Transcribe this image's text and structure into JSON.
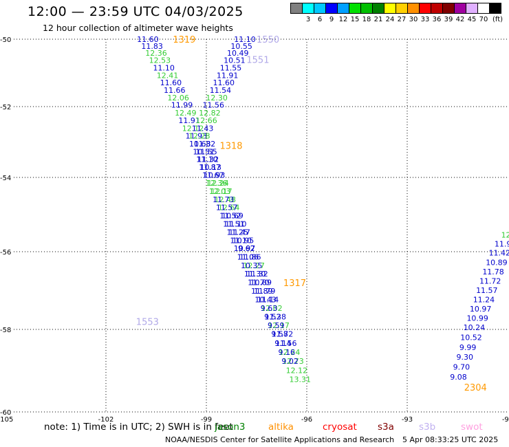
{
  "header": {
    "title": "12:00 — 23:59 UTC 04/03/2025",
    "subtitle": "12 hour collection of altimeter wave heights"
  },
  "legend": {
    "unit": "(ft)",
    "bins": [
      {
        "label": "",
        "color": "#808080"
      },
      {
        "label": "3",
        "color": "#00ffff"
      },
      {
        "label": "6",
        "color": "#00c8ff"
      },
      {
        "label": "9",
        "color": "#0000ff"
      },
      {
        "label": "12",
        "color": "#00a0ff"
      },
      {
        "label": "15",
        "color": "#00e000"
      },
      {
        "label": "18",
        "color": "#00c000"
      },
      {
        "label": "21",
        "color": "#008000"
      },
      {
        "label": "24",
        "color": "#ffff00"
      },
      {
        "label": "27",
        "color": "#ffd000"
      },
      {
        "label": "30",
        "color": "#ff9000"
      },
      {
        "label": "33",
        "color": "#ff0000"
      },
      {
        "label": "36",
        "color": "#c00000"
      },
      {
        "label": "39",
        "color": "#800000"
      },
      {
        "label": "42",
        "color": "#a000a0"
      },
      {
        "label": "45",
        "color": "#e0b0ff"
      },
      {
        "label": "70",
        "color": "#ffffff"
      },
      {
        "label": "",
        "color": "#000000"
      }
    ]
  },
  "footer": {
    "note": "note:  1) Time is in UTC; 2) SWH is in feet",
    "satellites": [
      {
        "name": "jason3",
        "color": "#008000"
      },
      {
        "name": "altika",
        "color": "#ff9000"
      },
      {
        "name": "cryosat",
        "color": "#ff0000"
      },
      {
        "name": "s3a",
        "color": "#800000"
      },
      {
        "name": "s3b",
        "color": "#c0b0f0"
      },
      {
        "name": "swot",
        "color": "#ffa0e0"
      }
    ],
    "credit": "NOAA/NESDIS Center for Satellite Applications and Research",
    "timestamp": "5 Apr 08:33:25 UTC 2025"
  },
  "chart_data": {
    "type": "scatter",
    "title": "12:00 — 23:59 UTC 04/03/2025",
    "subtitle": "12 hour collection of altimeter wave heights",
    "xlim": [
      -105,
      -90
    ],
    "ylim": [
      -60,
      -50
    ],
    "x_ticks": [
      -105,
      -102,
      -99,
      -96,
      -93,
      -90
    ],
    "x_tick_labels": [
      "-105",
      "-102",
      "-99",
      "-96",
      "-93",
      "-90"
    ],
    "y_ticks": [
      -50,
      -52,
      -54,
      -56,
      -58,
      -60
    ],
    "y_tick_labels": [
      "-50",
      "-52",
      "-54",
      "-56",
      "-58",
      "-60"
    ],
    "grid": true,
    "colors": {
      "blue": "#0000cc",
      "green": "#33cc33",
      "orange": "#ff9900",
      "lavender": "#b0a8e8"
    },
    "pass_labels": [
      {
        "text": "1319",
        "x": -100.0,
        "y": -50.0,
        "color": "orange"
      },
      {
        "text": "1550",
        "x": -97.5,
        "y": -50.0,
        "color": "lavender"
      },
      {
        "text": "1551",
        "x": -97.8,
        "y": -50.6,
        "color": "lavender"
      },
      {
        "text": "1318",
        "x": -98.6,
        "y": -53.1,
        "color": "orange"
      },
      {
        "text": "1317",
        "x": -96.7,
        "y": -56.8,
        "color": "orange"
      },
      {
        "text": "1553",
        "x": -101.1,
        "y": -57.8,
        "color": "lavender"
      },
      {
        "text": "2304",
        "x": -91.3,
        "y": -59.4,
        "color": "orange"
      }
    ],
    "series": [
      {
        "points": [
          {
            "x": -100.75,
            "y": -50.0,
            "v": "11.60",
            "c": "blue"
          },
          {
            "x": -100.62,
            "y": -50.2,
            "v": "11.83",
            "c": "blue"
          },
          {
            "x": -100.5,
            "y": -50.41,
            "v": "12.36",
            "c": "green"
          },
          {
            "x": -100.39,
            "y": -50.62,
            "v": "12.53",
            "c": "green"
          },
          {
            "x": -100.27,
            "y": -50.85,
            "v": "11.10",
            "c": "blue"
          },
          {
            "x": -100.16,
            "y": -51.07,
            "v": "12.41",
            "c": "green"
          },
          {
            "x": -100.06,
            "y": -51.29,
            "v": "11.60",
            "c": "blue"
          },
          {
            "x": -99.95,
            "y": -51.51,
            "v": "11.66",
            "c": "blue"
          },
          {
            "x": -99.84,
            "y": -51.73,
            "v": "12.06",
            "c": "green"
          },
          {
            "x": -99.73,
            "y": -51.95,
            "v": "11.99",
            "c": "blue"
          },
          {
            "x": -99.62,
            "y": -52.17,
            "v": "12.49",
            "c": "green"
          },
          {
            "x": -99.51,
            "y": -52.39,
            "v": "11.91",
            "c": "blue"
          },
          {
            "x": -99.4,
            "y": -52.61,
            "v": "12.12",
            "c": "green"
          },
          {
            "x": -99.3,
            "y": -52.83,
            "v": "11.93",
            "c": "blue"
          },
          {
            "x": -99.19,
            "y": -53.05,
            "v": "10.68",
            "c": "blue"
          },
          {
            "x": -99.08,
            "y": -53.27,
            "v": "10.51",
            "c": "blue"
          },
          {
            "x": -98.98,
            "y": -53.49,
            "v": "11.10",
            "c": "blue"
          },
          {
            "x": -98.87,
            "y": -53.71,
            "v": "10.13",
            "c": "blue"
          },
          {
            "x": -98.76,
            "y": -53.93,
            "v": "10.93",
            "c": "blue"
          },
          {
            "x": -98.65,
            "y": -54.15,
            "v": "12.24",
            "c": "green"
          },
          {
            "x": -98.55,
            "y": -54.37,
            "v": "12.17",
            "c": "green"
          },
          {
            "x": -98.44,
            "y": -54.59,
            "v": "12.48",
            "c": "green"
          },
          {
            "x": -98.33,
            "y": -54.81,
            "v": "12.64",
            "c": "green"
          },
          {
            "x": -98.22,
            "y": -55.03,
            "v": "10.69",
            "c": "blue"
          },
          {
            "x": -98.12,
            "y": -55.25,
            "v": "11.10",
            "c": "blue"
          },
          {
            "x": -98.01,
            "y": -55.47,
            "v": "11.47",
            "c": "blue"
          },
          {
            "x": -97.9,
            "y": -55.69,
            "v": "10.95",
            "c": "blue"
          },
          {
            "x": -97.8,
            "y": -55.91,
            "v": "9.62",
            "c": "blue"
          },
          {
            "x": -97.69,
            "y": -56.13,
            "v": "11.86",
            "c": "blue"
          },
          {
            "x": -97.58,
            "y": -56.35,
            "v": "12.27",
            "c": "green"
          },
          {
            "x": -97.48,
            "y": -56.57,
            "v": "11.32",
            "c": "blue"
          },
          {
            "x": -97.37,
            "y": -56.79,
            "v": "10.89",
            "c": "blue"
          },
          {
            "x": -97.26,
            "y": -57.01,
            "v": "11.79",
            "c": "blue"
          },
          {
            "x": -97.16,
            "y": -57.23,
            "v": "11.14",
            "c": "blue"
          },
          {
            "x": -97.05,
            "y": -57.45,
            "v": "12.02",
            "c": "green"
          },
          {
            "x": -96.94,
            "y": -57.67,
            "v": "11.38",
            "c": "blue"
          },
          {
            "x": -96.84,
            "y": -57.89,
            "v": "12.17",
            "c": "green"
          },
          {
            "x": -96.73,
            "y": -58.11,
            "v": "11.72",
            "c": "blue"
          },
          {
            "x": -96.62,
            "y": -58.33,
            "v": "11.56",
            "c": "blue"
          },
          {
            "x": -96.52,
            "y": -58.55,
            "v": "12.24",
            "c": "green"
          },
          {
            "x": -96.41,
            "y": -58.77,
            "v": "12.73",
            "c": "green"
          },
          {
            "x": -96.3,
            "y": -58.99,
            "v": "12.12",
            "c": "green"
          },
          {
            "x": -96.2,
            "y": -59.21,
            "v": "13.31",
            "c": "green"
          }
        ]
      },
      {
        "points": [
          {
            "x": -97.85,
            "y": -50.0,
            "v": "11.10",
            "c": "blue"
          },
          {
            "x": -97.95,
            "y": -50.2,
            "v": "10.55",
            "c": "blue"
          },
          {
            "x": -98.06,
            "y": -50.41,
            "v": "10.49",
            "c": "blue"
          },
          {
            "x": -98.16,
            "y": -50.62,
            "v": "10.51",
            "c": "blue"
          },
          {
            "x": -98.27,
            "y": -50.85,
            "v": "11.55",
            "c": "blue"
          },
          {
            "x": -98.37,
            "y": -51.07,
            "v": "11.91",
            "c": "blue"
          },
          {
            "x": -98.48,
            "y": -51.29,
            "v": "11.60",
            "c": "blue"
          },
          {
            "x": -98.58,
            "y": -51.51,
            "v": "11.54",
            "c": "blue"
          },
          {
            "x": -98.69,
            "y": -51.73,
            "v": "12.30",
            "c": "green"
          },
          {
            "x": -98.79,
            "y": -51.95,
            "v": "11.56",
            "c": "blue"
          },
          {
            "x": -98.9,
            "y": -52.17,
            "v": "12.82",
            "c": "green"
          },
          {
            "x": -99.0,
            "y": -52.39,
            "v": "12.66",
            "c": "green"
          },
          {
            "x": -99.11,
            "y": -52.61,
            "v": "11.43",
            "c": "blue"
          },
          {
            "x": -99.21,
            "y": -52.83,
            "v": "12.28",
            "c": "green"
          },
          {
            "x": -99.05,
            "y": -53.05,
            "v": "11.32",
            "c": "blue"
          },
          {
            "x": -99.0,
            "y": -53.27,
            "v": "11.55",
            "c": "blue"
          },
          {
            "x": -98.95,
            "y": -53.49,
            "v": "11.32",
            "c": "blue"
          },
          {
            "x": -98.9,
            "y": -53.71,
            "v": "11.87",
            "c": "blue"
          },
          {
            "x": -98.8,
            "y": -53.93,
            "v": "11.67",
            "c": "blue"
          },
          {
            "x": -98.7,
            "y": -54.15,
            "v": "12.36",
            "c": "green"
          },
          {
            "x": -98.6,
            "y": -54.37,
            "v": "12.03",
            "c": "green"
          },
          {
            "x": -98.49,
            "y": -54.59,
            "v": "11.73",
            "c": "blue"
          },
          {
            "x": -98.39,
            "y": -54.81,
            "v": "11.57",
            "c": "blue"
          },
          {
            "x": -98.28,
            "y": -55.03,
            "v": "11.52",
            "c": "blue"
          },
          {
            "x": -98.18,
            "y": -55.25,
            "v": "11.51",
            "c": "blue"
          },
          {
            "x": -98.07,
            "y": -55.47,
            "v": "11.25",
            "c": "blue"
          },
          {
            "x": -97.97,
            "y": -55.69,
            "v": "11.10",
            "c": "blue"
          },
          {
            "x": -97.86,
            "y": -55.91,
            "v": "10.97",
            "c": "blue"
          },
          {
            "x": -97.76,
            "y": -56.13,
            "v": "11.06",
            "c": "blue"
          },
          {
            "x": -97.65,
            "y": -56.35,
            "v": "10.35",
            "c": "blue"
          },
          {
            "x": -97.55,
            "y": -56.57,
            "v": "11.30",
            "c": "blue"
          },
          {
            "x": -97.44,
            "y": -56.79,
            "v": "11.70",
            "c": "blue"
          },
          {
            "x": -97.34,
            "y": -57.01,
            "v": "11.89",
            "c": "blue"
          },
          {
            "x": -97.23,
            "y": -57.23,
            "v": "10.43",
            "c": "blue"
          },
          {
            "x": -97.13,
            "y": -57.45,
            "v": "9.63",
            "c": "blue"
          },
          {
            "x": -97.02,
            "y": -57.67,
            "v": "9.52",
            "c": "blue"
          },
          {
            "x": -96.92,
            "y": -57.89,
            "v": "9.59",
            "c": "blue"
          },
          {
            "x": -96.81,
            "y": -58.11,
            "v": "9.58",
            "c": "blue"
          },
          {
            "x": -96.71,
            "y": -58.33,
            "v": "9.14",
            "c": "blue"
          },
          {
            "x": -96.6,
            "y": -58.55,
            "v": "9.16",
            "c": "blue"
          },
          {
            "x": -96.5,
            "y": -58.77,
            "v": "9.02",
            "c": "blue"
          }
        ]
      },
      {
        "points": [
          {
            "x": -90.05,
            "y": -55.55,
            "v": "12",
            "c": "green"
          },
          {
            "x": -90.14,
            "y": -55.79,
            "v": "11.9",
            "c": "blue"
          },
          {
            "x": -90.24,
            "y": -56.03,
            "v": "11.42",
            "c": "blue"
          },
          {
            "x": -90.33,
            "y": -56.27,
            "v": "10.89",
            "c": "blue"
          },
          {
            "x": -90.43,
            "y": -56.51,
            "v": "11.78",
            "c": "blue"
          },
          {
            "x": -90.52,
            "y": -56.75,
            "v": "11.72",
            "c": "blue"
          },
          {
            "x": -90.62,
            "y": -56.99,
            "v": "11.57",
            "c": "blue"
          },
          {
            "x": -90.71,
            "y": -57.23,
            "v": "11.24",
            "c": "blue"
          },
          {
            "x": -90.81,
            "y": -57.47,
            "v": "10.97",
            "c": "blue"
          },
          {
            "x": -90.9,
            "y": -57.71,
            "v": "10.99",
            "c": "blue"
          },
          {
            "x": -91.0,
            "y": -57.95,
            "v": "10.24",
            "c": "blue"
          },
          {
            "x": -91.09,
            "y": -58.19,
            "v": "10.52",
            "c": "blue"
          },
          {
            "x": -91.19,
            "y": -58.43,
            "v": "9.99",
            "c": "blue"
          },
          {
            "x": -91.28,
            "y": -58.67,
            "v": "9.30",
            "c": "blue"
          },
          {
            "x": -91.38,
            "y": -58.91,
            "v": "9.70",
            "c": "blue"
          },
          {
            "x": -91.47,
            "y": -59.15,
            "v": "9.08",
            "c": "blue"
          }
        ]
      }
    ]
  }
}
